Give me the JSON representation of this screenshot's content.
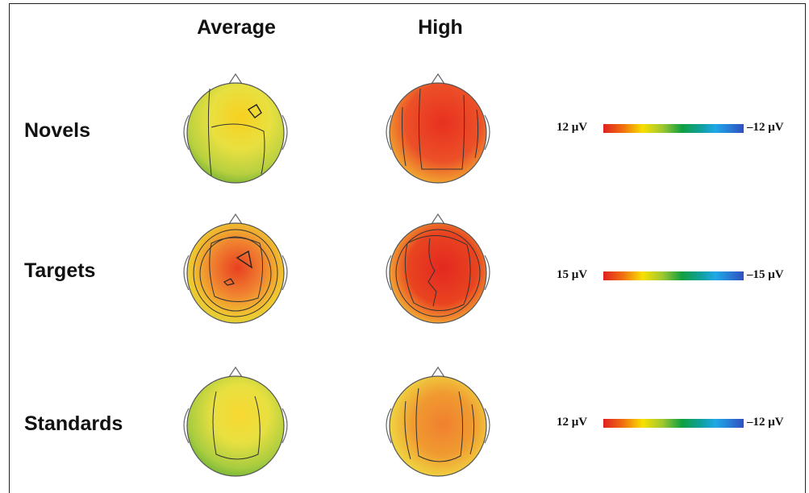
{
  "columns": {
    "average": "Average",
    "high": "High"
  },
  "rows": [
    {
      "label": "Novels",
      "scale": {
        "max": "12 μV",
        "min": "–12 μV"
      },
      "average_map": "yellow-green-topomap",
      "high_map": "red-orange-topomap"
    },
    {
      "label": "Targets",
      "scale": {
        "max": "15 μV",
        "min": "–15 μV"
      },
      "average_map": "orange-yellow-topomap",
      "high_map": "red-topomap"
    },
    {
      "label": "Standards",
      "scale": {
        "max": "12 μV",
        "min": "–12 μV"
      },
      "average_map": "yellow-green-topomap",
      "high_map": "orange-yellow-topomap"
    }
  ],
  "colors": {
    "red": "#e02020",
    "orange": "#f07010",
    "yellow": "#f8e000",
    "green": "#10a040",
    "cyan": "#20a8e8",
    "blue": "#3050c0"
  }
}
